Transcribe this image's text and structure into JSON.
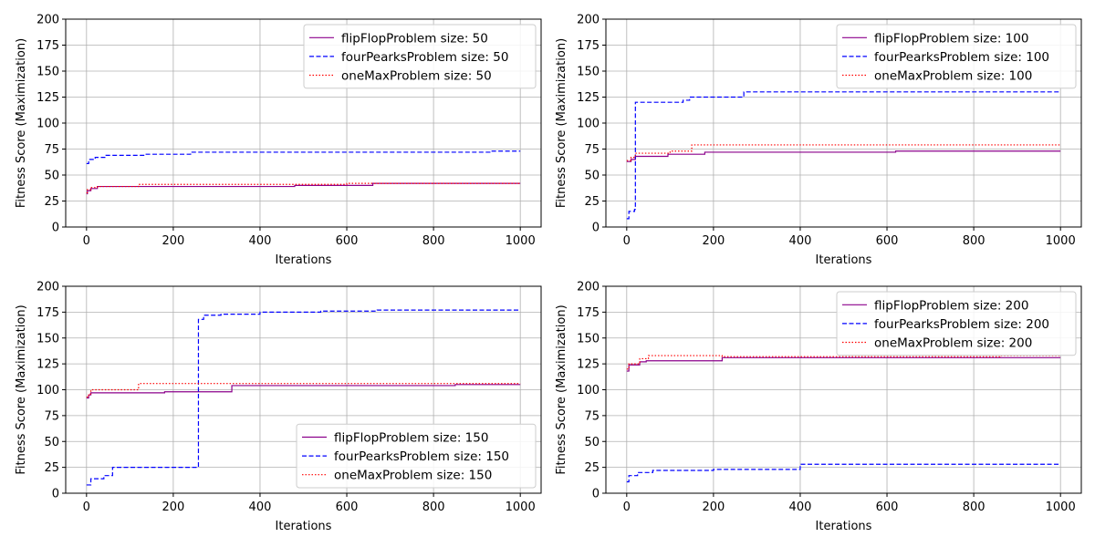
{
  "chart_data": [
    {
      "type": "line",
      "xlabel": "Iterations",
      "ylabel": "Fitness Score (Maximization)",
      "xlim": [
        -48,
        1048
      ],
      "ylim": [
        0,
        200
      ],
      "xticks": [
        "0",
        "200",
        "400",
        "600",
        "800",
        "1000"
      ],
      "yticks": [
        "0",
        "25",
        "50",
        "75",
        "100",
        "125",
        "150",
        "175",
        "200"
      ],
      "grid": true,
      "legend_position": "top-right",
      "series": [
        {
          "name": "flipFlopProblem size: 50",
          "color": "#8b008b",
          "style": "solid",
          "x": [
            0,
            2,
            10,
            25,
            480,
            660,
            1000
          ],
          "y": [
            32,
            35,
            37,
            39,
            40,
            42,
            42
          ]
        },
        {
          "name": "fourPearksProblem size: 50",
          "color": "#0000ff",
          "style": "dashed",
          "x": [
            0,
            5,
            20,
            45,
            135,
            240,
            930,
            1000
          ],
          "y": [
            61,
            65,
            67,
            69,
            70,
            72,
            73,
            73
          ]
        },
        {
          "name": "oneMaxProblem size: 50",
          "color": "#ff0000",
          "style": "dotted",
          "x": [
            0,
            2,
            10,
            25,
            120,
            600,
            1000
          ],
          "y": [
            33,
            36,
            38,
            39,
            41,
            42,
            42
          ]
        }
      ]
    },
    {
      "type": "line",
      "xlabel": "Iterations",
      "ylabel": "Fitness Score (Maximization)",
      "xlim": [
        -48,
        1048
      ],
      "ylim": [
        0,
        200
      ],
      "xticks": [
        "0",
        "200",
        "400",
        "600",
        "800",
        "1000"
      ],
      "yticks": [
        "0",
        "25",
        "50",
        "75",
        "100",
        "125",
        "150",
        "175",
        "200"
      ],
      "grid": true,
      "legend_position": "top-right",
      "series": [
        {
          "name": "flipFlopProblem size: 100",
          "color": "#8b008b",
          "style": "solid",
          "x": [
            0,
            10,
            20,
            95,
            180,
            620,
            1000
          ],
          "y": [
            63,
            65,
            68,
            70,
            72,
            73,
            73
          ]
        },
        {
          "name": "fourPearksProblem size: 100",
          "color": "#0000ff",
          "style": "dashed",
          "x": [
            0,
            5,
            18,
            20,
            130,
            145,
            270,
            1000
          ],
          "y": [
            8,
            15,
            17,
            120,
            122,
            125,
            130,
            130
          ]
        },
        {
          "name": "oneMaxProblem size: 100",
          "color": "#ff0000",
          "style": "dotted",
          "x": [
            0,
            10,
            20,
            100,
            150,
            1000
          ],
          "y": [
            64,
            67,
            71,
            73,
            79,
            79
          ]
        }
      ]
    },
    {
      "type": "line",
      "xlabel": "Iterations",
      "ylabel": "Fitness Score (Maximization)",
      "xlim": [
        -48,
        1048
      ],
      "ylim": [
        0,
        200
      ],
      "xticks": [
        "0",
        "200",
        "400",
        "600",
        "800",
        "1000"
      ],
      "yticks": [
        "0",
        "25",
        "50",
        "75",
        "100",
        "125",
        "150",
        "175",
        "200"
      ],
      "grid": true,
      "legend_position": "bottom-right",
      "series": [
        {
          "name": "flipFlopProblem size: 150",
          "color": "#8b008b",
          "style": "solid",
          "x": [
            0,
            5,
            10,
            180,
            335,
            850,
            1000
          ],
          "y": [
            92,
            95,
            97,
            98,
            104,
            105,
            105
          ]
        },
        {
          "name": "fourPearksProblem size: 150",
          "color": "#0000ff",
          "style": "dashed",
          "x": [
            0,
            10,
            40,
            60,
            255,
            258,
            270,
            310,
            400,
            540,
            670,
            1000
          ],
          "y": [
            8,
            14,
            17,
            25,
            25,
            168,
            172,
            173,
            175,
            176,
            177,
            177
          ]
        },
        {
          "name": "oneMaxProblem size: 150",
          "color": "#ff0000",
          "style": "dotted",
          "x": [
            0,
            5,
            10,
            120,
            1000
          ],
          "y": [
            93,
            96,
            100,
            106,
            106
          ]
        }
      ]
    },
    {
      "type": "line",
      "xlabel": "Iterations",
      "ylabel": "Fitness Score (Maximization)",
      "xlim": [
        -48,
        1048
      ],
      "ylim": [
        0,
        200
      ],
      "xticks": [
        "0",
        "200",
        "400",
        "600",
        "800",
        "1000"
      ],
      "yticks": [
        "0",
        "25",
        "50",
        "75",
        "100",
        "125",
        "150",
        "175",
        "200"
      ],
      "grid": true,
      "legend_position": "top-right",
      "series": [
        {
          "name": "flipFlopProblem size: 200",
          "color": "#8b008b",
          "style": "solid",
          "x": [
            0,
            5,
            30,
            45,
            220,
            1000
          ],
          "y": [
            118,
            124,
            127,
            128,
            131,
            131
          ]
        },
        {
          "name": "fourPearksProblem size: 200",
          "color": "#0000ff",
          "style": "dashed",
          "x": [
            0,
            5,
            25,
            60,
            200,
            400,
            1000
          ],
          "y": [
            11,
            17,
            20,
            22,
            23,
            28,
            28
          ]
        },
        {
          "name": "oneMaxProblem size: 200",
          "color": "#ff0000",
          "style": "dotted",
          "x": [
            0,
            5,
            30,
            50,
            220,
            860,
            1000
          ],
          "y": [
            120,
            125,
            130,
            133,
            132,
            133,
            133
          ]
        }
      ]
    }
  ]
}
